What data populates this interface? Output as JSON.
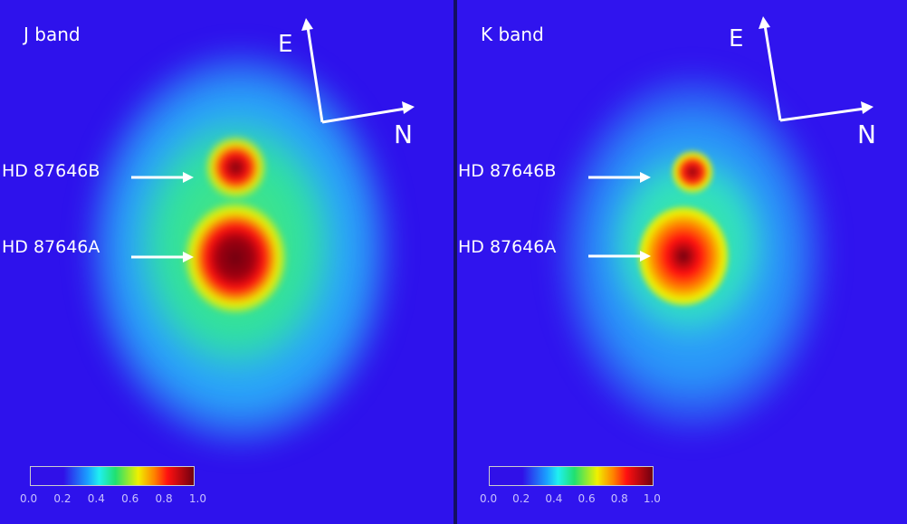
{
  "panels": [
    {
      "band": "J band",
      "compass": {
        "east": "E",
        "north": "N"
      },
      "labels": {
        "b": "HD 87646B",
        "a": "HD 87646A"
      },
      "colorbar": {
        "ticks": [
          "0.0",
          "0.2",
          "0.4",
          "0.6",
          "0.8",
          "1.0"
        ]
      }
    },
    {
      "band": "K band",
      "compass": {
        "east": "E",
        "north": "N"
      },
      "labels": {
        "b": "HD 87646B",
        "a": "HD 87646A"
      },
      "colorbar": {
        "ticks": [
          "0.0",
          "0.2",
          "0.4",
          "0.6",
          "0.8",
          "1.0"
        ]
      }
    }
  ],
  "colormap": [
    "#3010e8",
    "#1aa0ff",
    "#20f0f0",
    "#20e070",
    "#f0f000",
    "#ff8000",
    "#ff1010",
    "#700010"
  ]
}
